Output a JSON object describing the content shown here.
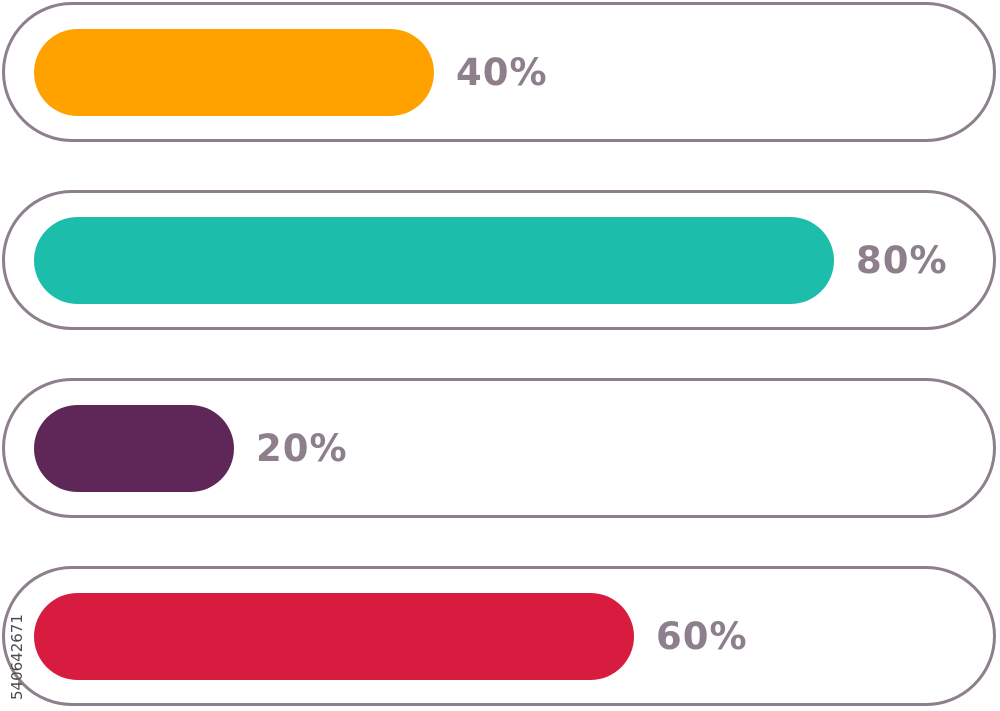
{
  "colors": {
    "track_border": "#8d7f8c",
    "label": "#8d7f8c"
  },
  "bars": [
    {
      "label": "40%",
      "value": 0.4,
      "color": "#ffa200"
    },
    {
      "label": "80%",
      "value": 0.8,
      "color": "#1cbdaa"
    },
    {
      "label": "20%",
      "value": 0.2,
      "color": "#5f2757"
    },
    {
      "label": "60%",
      "value": 0.6,
      "color": "#d81c3f"
    }
  ],
  "watermark": {
    "text": "540642671"
  }
}
